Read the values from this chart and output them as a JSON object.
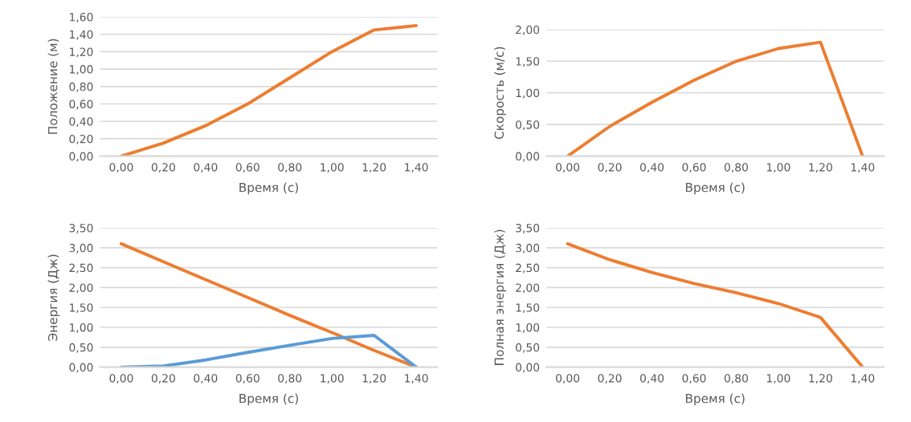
{
  "chart_data": [
    {
      "type": "line",
      "xlabel": "Время (с)",
      "ylabel": "Положение (м)",
      "categories": [
        "0,00",
        "0,20",
        "0,40",
        "0,60",
        "0,80",
        "1,00",
        "1,20",
        "1,40"
      ],
      "grid": "y",
      "legend": false,
      "ylim": [
        0,
        1.6
      ],
      "yticks": [
        {
          "value": 0,
          "label": "0,00"
        },
        {
          "value": 0.2,
          "label": "0,20"
        },
        {
          "value": 0.4,
          "label": "0,40"
        },
        {
          "value": 0.6,
          "label": "0,60"
        },
        {
          "value": 0.8,
          "label": "0,80"
        },
        {
          "value": 1.0,
          "label": "1,00"
        },
        {
          "value": 1.2,
          "label": "1,20"
        },
        {
          "value": 1.4,
          "label": "1,40"
        },
        {
          "value": 1.6,
          "label": "1,60"
        }
      ],
      "series": [
        {
          "color": "#ed7d31",
          "values": [
            0,
            0.15,
            0.35,
            0.6,
            0.9,
            1.2,
            1.45,
            1.5
          ]
        }
      ]
    },
    {
      "type": "line",
      "xlabel": "Время (с)",
      "ylabel": "Скорость (м/с)",
      "categories": [
        "0,00",
        "0,20",
        "0,40",
        "0,60",
        "0,80",
        "1,00",
        "1,20",
        "1,40"
      ],
      "grid": "y",
      "legend": false,
      "ylim": [
        0,
        2.0
      ],
      "yticks": [
        {
          "value": 0,
          "label": "0,00"
        },
        {
          "value": 0.5,
          "label": "0,50"
        },
        {
          "value": 1.0,
          "label": "1,00"
        },
        {
          "value": 1.5,
          "label": "1,50"
        },
        {
          "value": 2.0,
          "label": "2,00"
        }
      ],
      "series": [
        {
          "color": "#ed7d31",
          "values": [
            0,
            0.47,
            0.85,
            1.2,
            1.5,
            1.7,
            1.8,
            0
          ]
        }
      ]
    },
    {
      "type": "line",
      "xlabel": "Время (с)",
      "ylabel": "Энергия (Дж)",
      "categories": [
        "0,00",
        "0,20",
        "0,40",
        "0,60",
        "0,80",
        "1,00",
        "1,20",
        "1,40"
      ],
      "grid": "y",
      "legend": false,
      "ylim": [
        0,
        3.5
      ],
      "yticks": [
        {
          "value": 0,
          "label": "0,00"
        },
        {
          "value": 0.5,
          "label": "0,50"
        },
        {
          "value": 1.0,
          "label": "1,00"
        },
        {
          "value": 1.5,
          "label": "1,50"
        },
        {
          "value": 2.0,
          "label": "2,00"
        },
        {
          "value": 2.5,
          "label": "2,50"
        },
        {
          "value": 3.0,
          "label": "3,00"
        },
        {
          "value": 3.5,
          "label": "3,50"
        }
      ],
      "series": [
        {
          "color": "#ed7d31",
          "values": [
            3.1,
            2.65,
            2.2,
            1.75,
            1.3,
            0.87,
            0.42,
            0
          ]
        },
        {
          "color": "#5b9bd5",
          "values": [
            0,
            0.03,
            0.18,
            0.37,
            0.55,
            0.72,
            0.8,
            0
          ]
        }
      ]
    },
    {
      "type": "line",
      "xlabel": "Время (с)",
      "ylabel": "Полная энергия (Дж)",
      "categories": [
        "0,00",
        "0,20",
        "0,40",
        "0,60",
        "0,80",
        "1,00",
        "1,20",
        "1,40"
      ],
      "grid": "y",
      "legend": false,
      "ylim": [
        0,
        3.5
      ],
      "yticks": [
        {
          "value": 0,
          "label": "0,00"
        },
        {
          "value": 0.5,
          "label": "0,50"
        },
        {
          "value": 1.0,
          "label": "1,00"
        },
        {
          "value": 1.5,
          "label": "1,50"
        },
        {
          "value": 2.0,
          "label": "2,00"
        },
        {
          "value": 2.5,
          "label": "2,50"
        },
        {
          "value": 3.0,
          "label": "3,00"
        },
        {
          "value": 3.5,
          "label": "3,50"
        }
      ],
      "series": [
        {
          "color": "#ed7d31",
          "values": [
            3.1,
            2.7,
            2.38,
            2.1,
            1.87,
            1.6,
            1.25,
            0
          ]
        }
      ]
    }
  ]
}
